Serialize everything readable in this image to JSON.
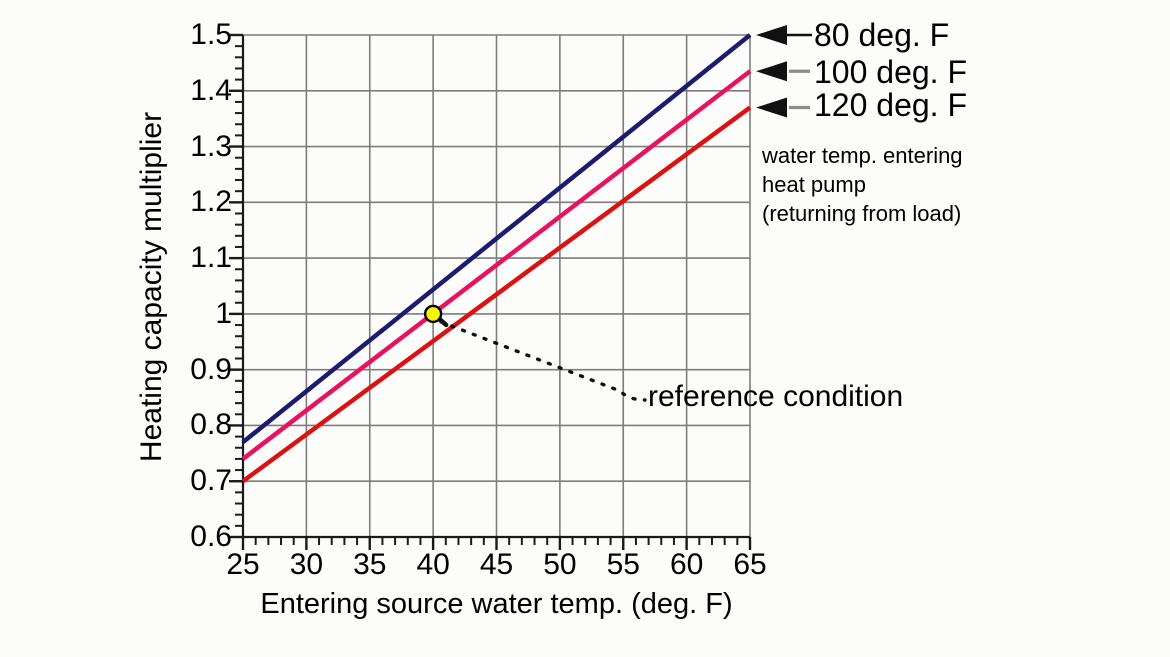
{
  "figure": {
    "background": "#fcfcfb",
    "grid_color": "#7d7d7d",
    "axis_color": "#1a1a1a",
    "arrow_color": "#111111",
    "connector_gray": "#8c8c8c"
  },
  "annotations": {
    "reference_label": "reference condition",
    "legend_note": "water temp. entering\nheat pump\n(returning from load)"
  },
  "chart_data": {
    "type": "line",
    "title": "",
    "xlabel": "Entering source water temp. (deg. F)",
    "ylabel": "Heating capacity multiplier",
    "xlim": [
      25,
      65
    ],
    "ylim": [
      0.6,
      1.5
    ],
    "x_tick_values": [
      25,
      30,
      35,
      40,
      45,
      50,
      55,
      60,
      65
    ],
    "x_tick_labels": [
      "25",
      "30",
      "35",
      "40",
      "45",
      "50",
      "55",
      "60",
      "65"
    ],
    "y_tick_values": [
      1.5,
      1.4,
      1.3,
      1.2,
      1.1,
      1.0,
      0.9,
      0.8,
      0.7,
      0.6
    ],
    "y_tick_labels": [
      "1.5",
      "1.4",
      "1.3",
      "1.2",
      "1.1",
      "1",
      "0.9",
      "0.8",
      "0.7",
      "0.6"
    ],
    "x_minor_step": 1,
    "y_minor_step": 0.02,
    "grid": true,
    "legend_position": "right of line ends, arrow-annotated",
    "series": [
      {
        "name": "80 deg. F",
        "color": "#1b1b70",
        "x": [
          25,
          65
        ],
        "y": [
          0.77,
          1.5
        ]
      },
      {
        "name": "100 deg. F",
        "color": "#e8125f",
        "x": [
          25,
          65
        ],
        "y": [
          0.74,
          1.435
        ]
      },
      {
        "name": "120 deg. F",
        "color": "#dc1111",
        "x": [
          25,
          65
        ],
        "y": [
          0.7,
          1.37
        ]
      }
    ],
    "reference_point": {
      "x": 40,
      "y": 1.0,
      "marker_color": "#f6f600",
      "label": "reference condition"
    }
  }
}
